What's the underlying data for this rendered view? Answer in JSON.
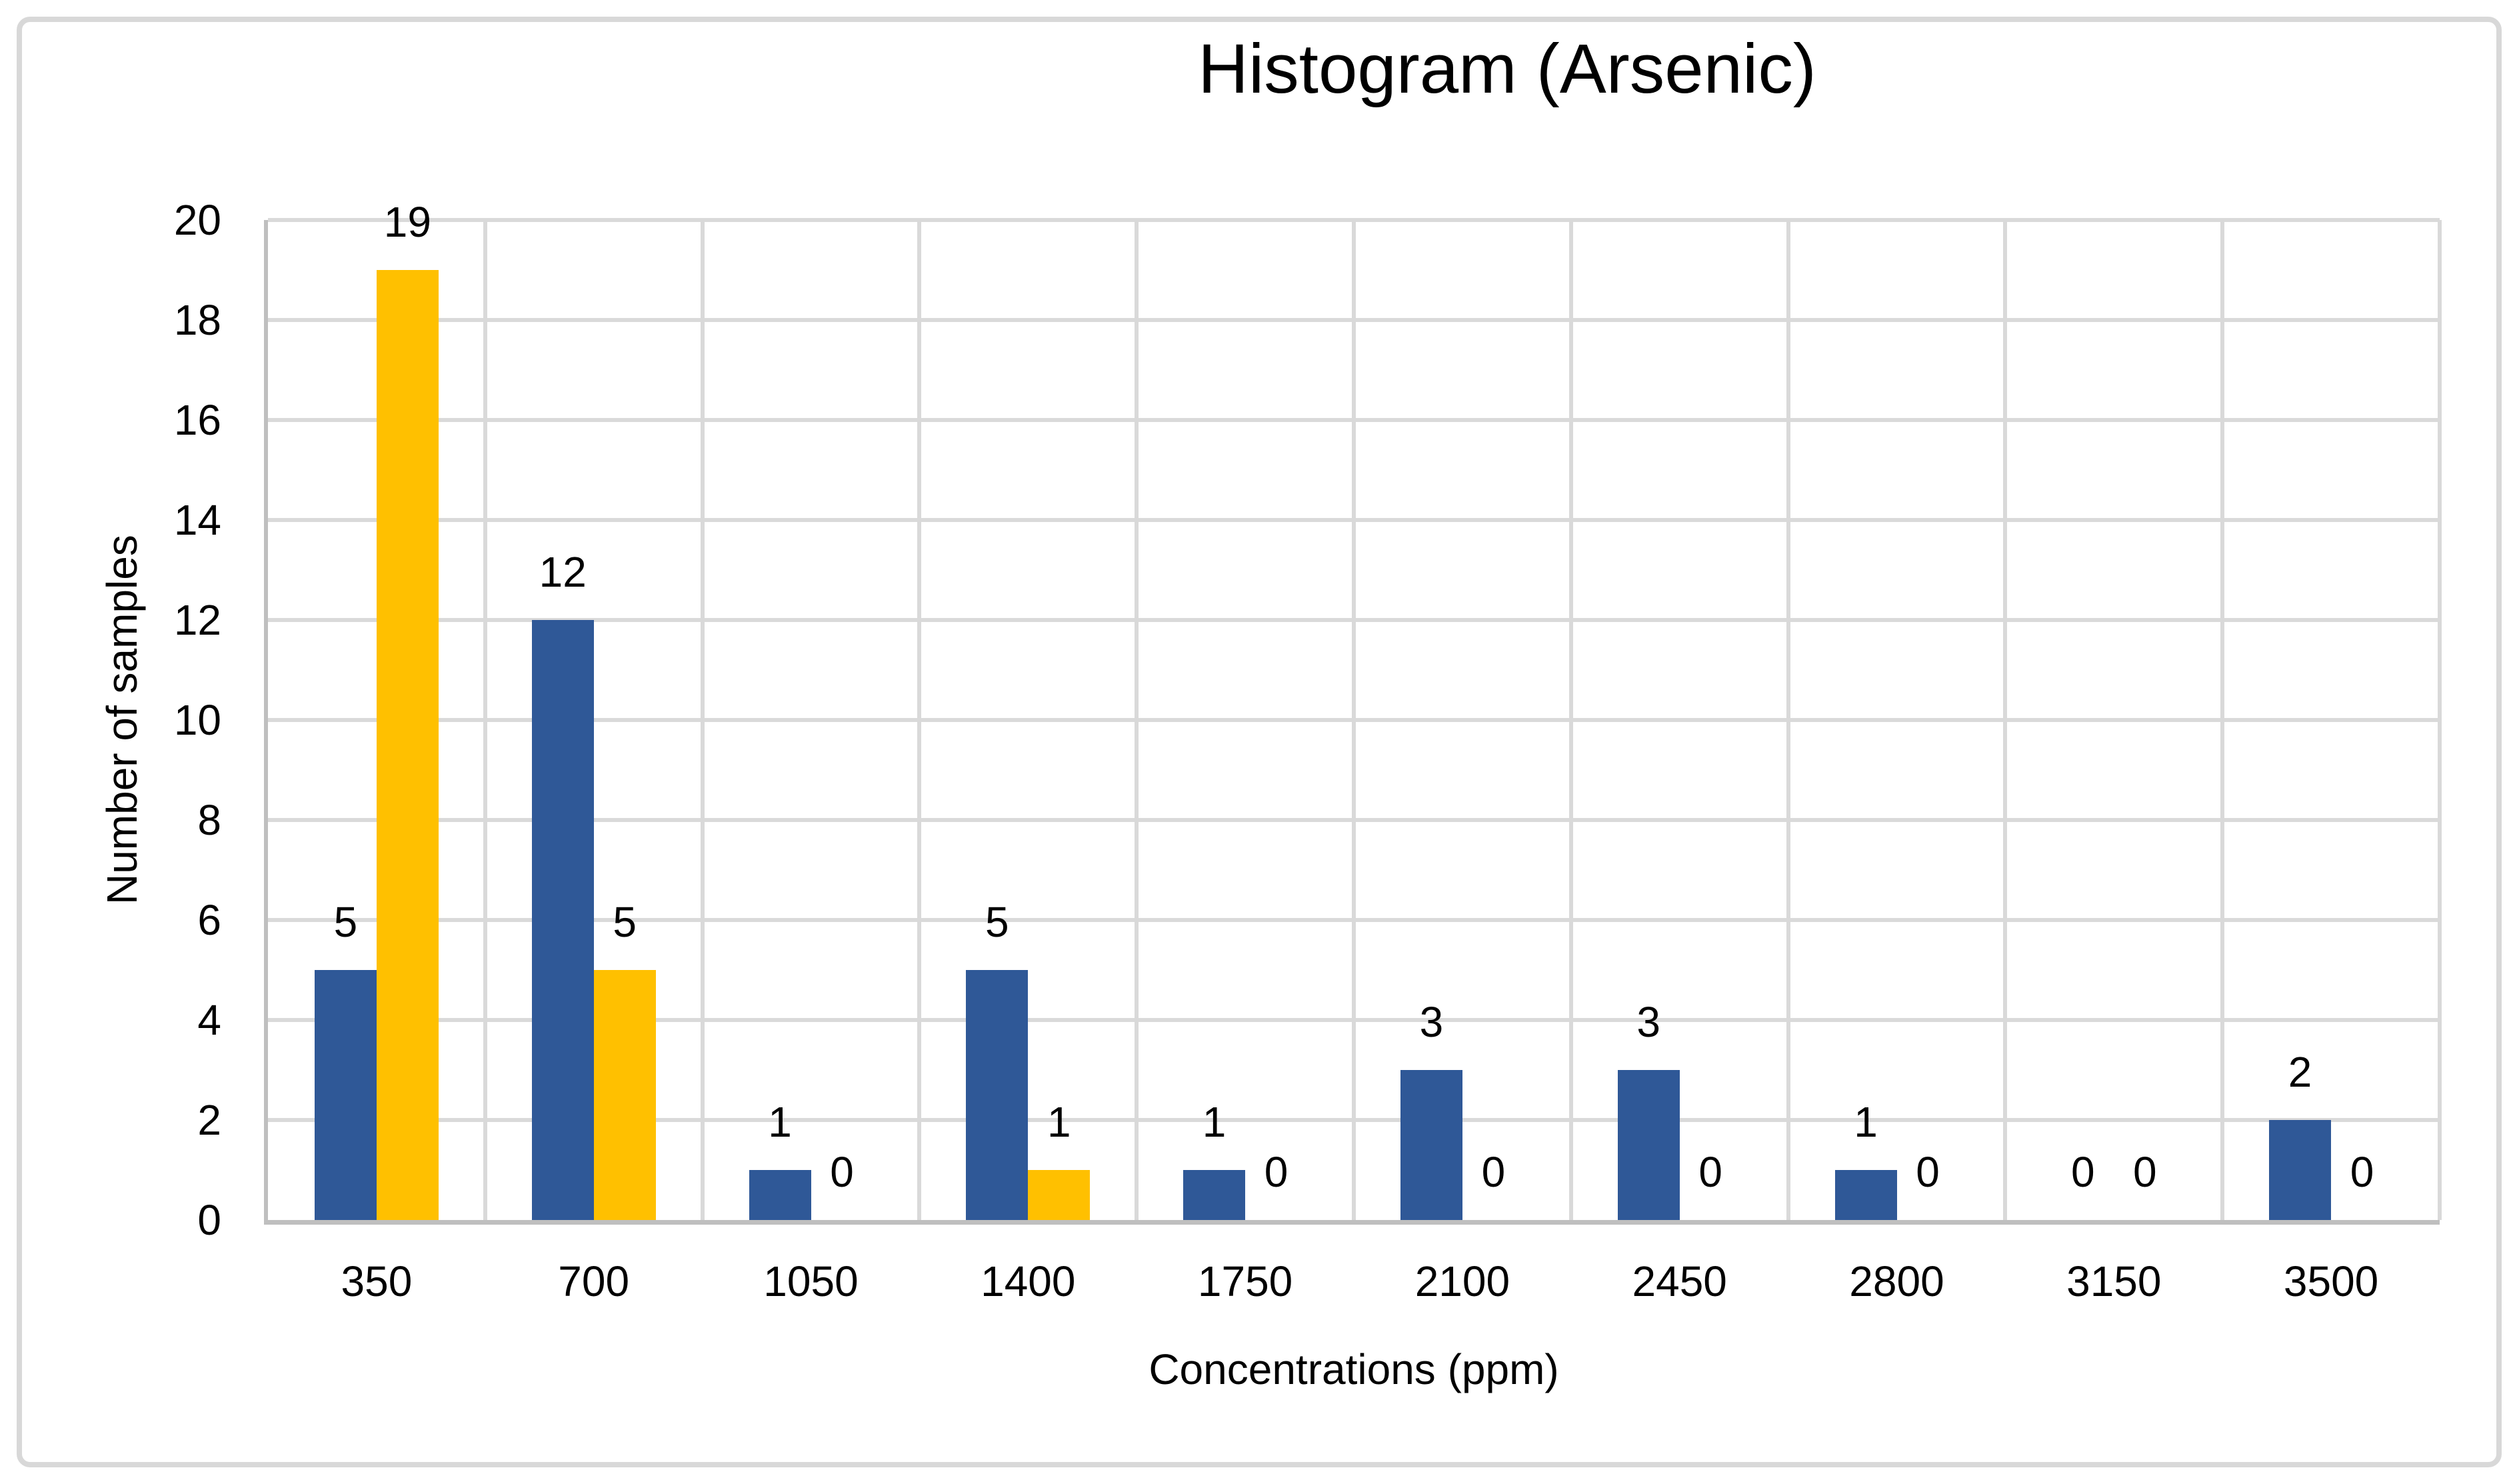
{
  "chart_data": {
    "type": "bar",
    "title": "Histogram (Arsenic)",
    "xlabel": "Concentrations (ppm)",
    "ylabel": "Number of samples",
    "categories": [
      "350",
      "700",
      "1050",
      "1400",
      "1750",
      "2100",
      "2450",
      "2800",
      "3150",
      "3500"
    ],
    "series": [
      {
        "name": "series-blue",
        "color": "#2F5897",
        "values": [
          5,
          12,
          1,
          5,
          1,
          3,
          3,
          1,
          0,
          2
        ]
      },
      {
        "name": "series-gold",
        "color": "#FFC000",
        "values": [
          19,
          5,
          0,
          1,
          0,
          0,
          0,
          0,
          0,
          0
        ]
      }
    ],
    "ylim": [
      0,
      20
    ],
    "ytick_step": 2,
    "grid": true,
    "legend": "none",
    "data_labels": "outside-end"
  },
  "style": {
    "gridline_color": "#D9D9D9",
    "axis_line_color": "#BFBFBF",
    "frame_border_color": "#D8D8D8",
    "text_color": "#000000",
    "background_color": "#FFFFFF"
  }
}
